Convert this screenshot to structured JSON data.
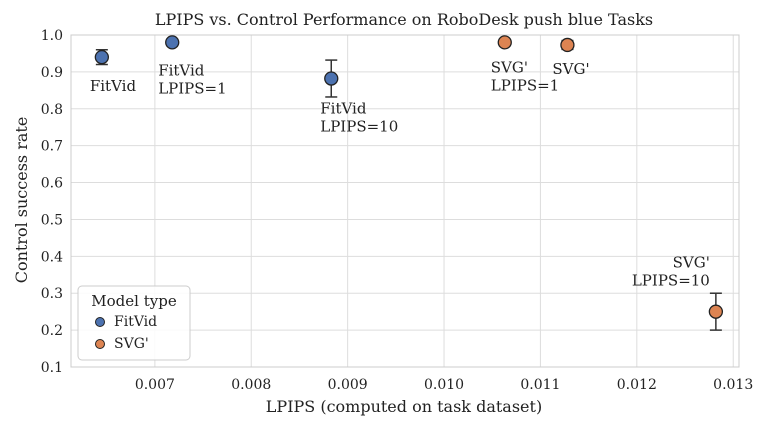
{
  "chart_data": {
    "type": "scatter",
    "title": "LPIPS vs. Control Performance on RoboDesk push blue Tasks",
    "xlabel": "LPIPS (computed on task dataset)",
    "ylabel": "Control success rate",
    "xlim": [
      0.00613,
      0.01306
    ],
    "ylim": [
      0.1,
      1.0
    ],
    "xticks": [
      0.007,
      0.008,
      0.009,
      0.01,
      0.011,
      0.012,
      0.013
    ],
    "xtick_labels": [
      "0.007",
      "0.008",
      "0.009",
      "0.010",
      "0.011",
      "0.012",
      "0.013"
    ],
    "yticks": [
      0.1,
      0.2,
      0.3,
      0.4,
      0.5,
      0.6,
      0.7,
      0.8,
      0.9,
      1.0
    ],
    "ytick_labels": [
      "0.1",
      "0.2",
      "0.3",
      "0.4",
      "0.5",
      "0.6",
      "0.7",
      "0.8",
      "0.9",
      "1.0"
    ],
    "grid": true,
    "legend": {
      "title": "Model type",
      "placement": "lower-left",
      "entries": [
        {
          "name": "FitVid",
          "color": "#4c72b0"
        },
        {
          "name": "SVG'",
          "color": "#dd8452"
        }
      ]
    },
    "series": [
      {
        "name": "FitVid",
        "color": "#4c72b0",
        "points": [
          {
            "x": 0.00645,
            "y": 0.94,
            "err": 0.02,
            "label": [
              "FitVid"
            ]
          },
          {
            "x": 0.00718,
            "y": 0.98,
            "err": 0.0,
            "label": [
              "FitVid",
              "LPIPS=1"
            ]
          },
          {
            "x": 0.00883,
            "y": 0.882,
            "err": 0.05,
            "label": [
              "FitVid",
              "LPIPS=10"
            ]
          }
        ]
      },
      {
        "name": "SVG'",
        "color": "#dd8452",
        "points": [
          {
            "x": 0.01063,
            "y": 0.98,
            "err": 0.0,
            "label": [
              "SVG'",
              "LPIPS=1"
            ]
          },
          {
            "x": 0.01128,
            "y": 0.973,
            "err": 0.012,
            "label": [
              "SVG'"
            ]
          },
          {
            "x": 0.01282,
            "y": 0.25,
            "err": 0.05,
            "label": [
              "SVG'",
              "LPIPS=10"
            ]
          }
        ]
      }
    ]
  }
}
